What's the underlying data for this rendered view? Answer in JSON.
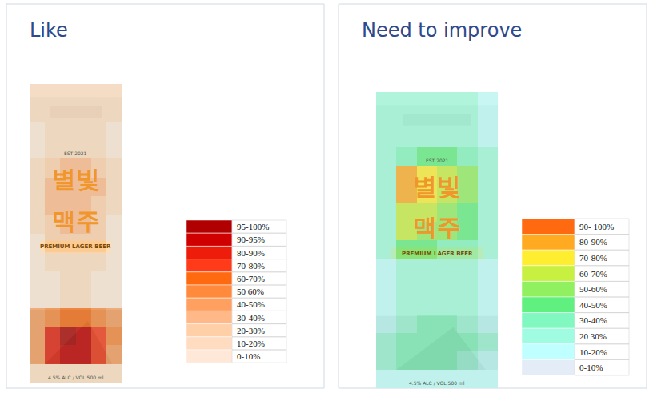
{
  "chart_data": [
    {
      "type": "heatmap",
      "title": "Like",
      "tick_labels": false,
      "zlim": [
        0,
        100
      ],
      "cells": [
        [
          12,
          12,
          15,
          15,
          12,
          10
        ],
        [
          12,
          12,
          15,
          15,
          12,
          10
        ],
        [
          8,
          10,
          12,
          12,
          10,
          8
        ],
        [
          8,
          12,
          18,
          18,
          12,
          8
        ],
        [
          10,
          25,
          35,
          35,
          28,
          12
        ],
        [
          12,
          32,
          38,
          36,
          30,
          12
        ],
        [
          12,
          30,
          36,
          34,
          28,
          10
        ],
        [
          10,
          25,
          30,
          30,
          22,
          8
        ],
        [
          8,
          20,
          25,
          28,
          25,
          8
        ],
        [
          6,
          10,
          15,
          15,
          10,
          6
        ],
        [
          5,
          8,
          10,
          10,
          8,
          5
        ],
        [
          5,
          8,
          12,
          12,
          8,
          5
        ],
        [
          40,
          55,
          65,
          62,
          55,
          40
        ],
        [
          45,
          85,
          97,
          92,
          75,
          50
        ],
        [
          40,
          80,
          92,
          90,
          70,
          45
        ],
        [
          10,
          15,
          18,
          18,
          15,
          10
        ]
      ],
      "color_bins": [
        {
          "range": [
            95,
            100
          ],
          "label": "95-100%",
          "color": "#b00000"
        },
        {
          "range": [
            90,
            95
          ],
          "label": "90-95%",
          "color": "#d00000"
        },
        {
          "range": [
            80,
            90
          ],
          "label": "80-90%",
          "color": "#ee1c0a"
        },
        {
          "range": [
            70,
            80
          ],
          "label": "70-80%",
          "color": "#ff3b1a"
        },
        {
          "range": [
            60,
            70
          ],
          "label": "60-70%",
          "color": "#ff6a10"
        },
        {
          "range": [
            50,
            60
          ],
          "label": "50 60%",
          "color": "#ff8a3c"
        },
        {
          "range": [
            40,
            50
          ],
          "label": "40-50%",
          "color": "#ffa060"
        },
        {
          "range": [
            30,
            40
          ],
          "label": "30-40%",
          "color": "#ffb888"
        },
        {
          "range": [
            20,
            30
          ],
          "label": "20-30%",
          "color": "#ffcfa8"
        },
        {
          "range": [
            10,
            20
          ],
          "label": "10-20%",
          "color": "#ffdcc0"
        },
        {
          "range": [
            0,
            10
          ],
          "label": "0-10%",
          "color": "#ffe8d8"
        }
      ],
      "annotations": [
        "별빛",
        "맥주",
        "PREMIUM LAGER BEER",
        "EST 2021",
        "4.5% ALC / VOL 500 ml"
      ]
    },
    {
      "type": "heatmap",
      "title": "Need to improve",
      "tick_labels": false,
      "zlim": [
        0,
        100
      ],
      "cells": [
        [
          20,
          22,
          22,
          22,
          20,
          18
        ],
        [
          22,
          25,
          25,
          25,
          22,
          18
        ],
        [
          20,
          22,
          25,
          25,
          22,
          18
        ],
        [
          22,
          35,
          40,
          40,
          35,
          22
        ],
        [
          25,
          85,
          75,
          65,
          55,
          28
        ],
        [
          28,
          82,
          72,
          62,
          52,
          28
        ],
        [
          25,
          65,
          60,
          55,
          45,
          25
        ],
        [
          25,
          60,
          55,
          50,
          45,
          22
        ],
        [
          22,
          40,
          40,
          38,
          35,
          22
        ],
        [
          18,
          22,
          25,
          25,
          22,
          15
        ],
        [
          15,
          20,
          22,
          22,
          20,
          15
        ],
        [
          15,
          20,
          22,
          22,
          20,
          15
        ],
        [
          18,
          25,
          30,
          30,
          25,
          18
        ],
        [
          20,
          32,
          35,
          35,
          30,
          20
        ],
        [
          20,
          30,
          32,
          32,
          28,
          18
        ],
        [
          12,
          15,
          15,
          15,
          15,
          12
        ]
      ],
      "color_bins": [
        {
          "range": [
            90,
            100
          ],
          "label": "90- 100%",
          "color": "#ff6a10"
        },
        {
          "range": [
            80,
            90
          ],
          "label": "80-90%",
          "color": "#ffaa20"
        },
        {
          "range": [
            70,
            80
          ],
          "label": "70-80%",
          "color": "#ffee30"
        },
        {
          "range": [
            60,
            70
          ],
          "label": "60-70%",
          "color": "#c8f040"
        },
        {
          "range": [
            50,
            60
          ],
          "label": "50-60%",
          "color": "#90f060"
        },
        {
          "range": [
            40,
            50
          ],
          "label": "40-50%",
          "color": "#60f080"
        },
        {
          "range": [
            30,
            40
          ],
          "label": "30-40%",
          "color": "#80f8c0"
        },
        {
          "range": [
            20,
            30
          ],
          "label": "20 30%",
          "color": "#a0fce0"
        },
        {
          "range": [
            10,
            20
          ],
          "label": "10-20%",
          "color": "#c0ffff"
        },
        {
          "range": [
            0,
            10
          ],
          "label": "0-10%",
          "color": "#e4ecf8"
        }
      ],
      "annotations": [
        "별빛",
        "맥주",
        "PREMIUM LAGER BEER",
        "EST 2021",
        "4.5% ALC / VOL 500 ml"
      ]
    }
  ]
}
